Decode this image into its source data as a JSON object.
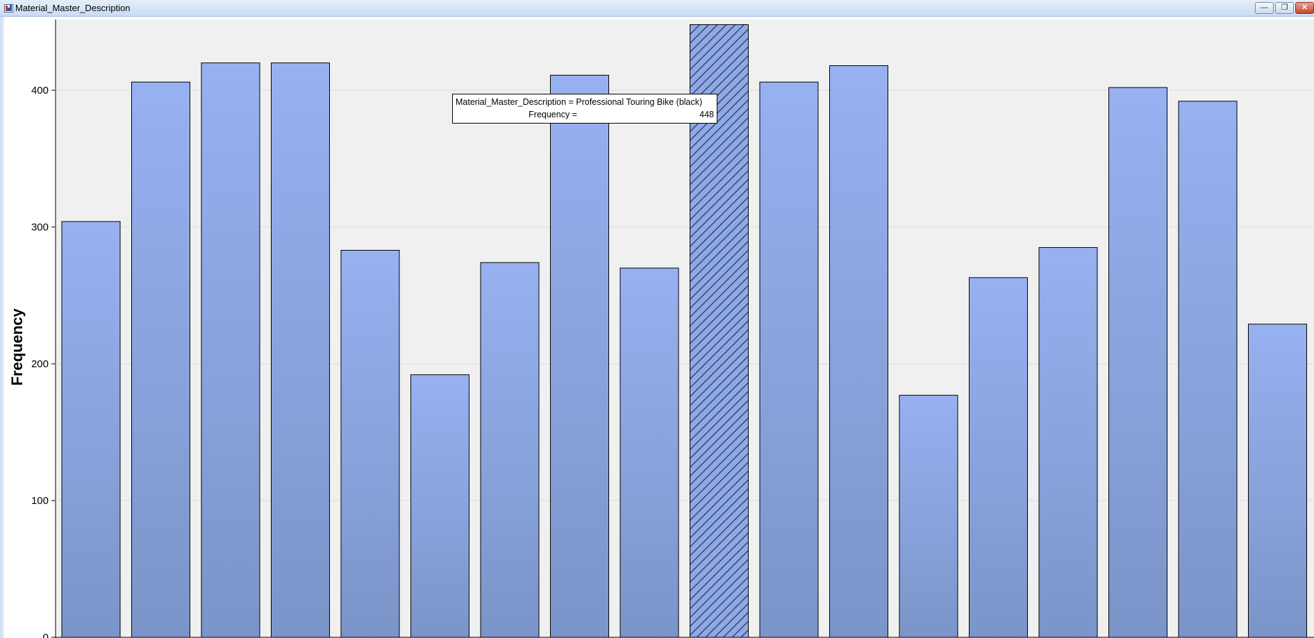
{
  "window": {
    "title": "Material_Master_Description",
    "controls": {
      "minimize": "minimize-icon",
      "restore": "restore-icon",
      "close": "close-icon"
    }
  },
  "tooltip": {
    "row1_key": "Material_Master_Description",
    "row1_eq": "=",
    "row1_value": "Professional Touring Bike (black)",
    "row2_key": "Frequency",
    "row2_eq": "=",
    "row2_value": "448"
  },
  "colors": {
    "bar_top": "#97b1f1",
    "bar_bottom": "#7b95c9",
    "plot_bg": "#f0f0f0",
    "selected_hatch": "#22304f"
  },
  "chart_data": {
    "type": "bar",
    "ylabel": "Frequency",
    "xlabel": "",
    "ylim": [
      0,
      450
    ],
    "yticks": [
      0,
      100,
      200,
      300,
      400
    ],
    "grid": true,
    "selected_index": 9,
    "values": [
      304,
      406,
      420,
      420,
      283,
      192,
      274,
      411,
      270,
      448,
      406,
      418,
      177,
      263,
      285,
      402,
      392,
      229
    ]
  }
}
